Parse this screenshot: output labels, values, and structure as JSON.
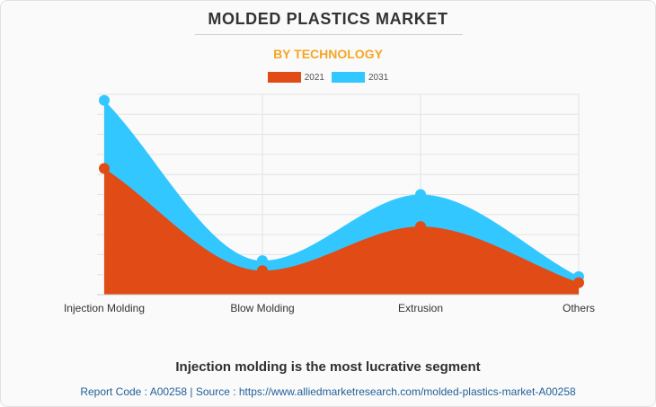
{
  "title": "MOLDED PLASTICS MARKET",
  "subtitle": "BY TECHNOLOGY",
  "caption": "Injection molding is the most lucrative segment",
  "footer": "Report Code : A00258  |  Source : https://www.alliedmarketresearch.com/molded-plastics-market-A00258",
  "colors": {
    "series_2021": "#e04b16",
    "series_2031": "#33c7ff",
    "title": "#333333",
    "subtitle": "#f5a623",
    "footer": "#1f5f99"
  },
  "chart_data": {
    "type": "area",
    "categories": [
      "Injection Molding",
      "Blow Molding",
      "Extrusion",
      "Others"
    ],
    "series": [
      {
        "name": "2021",
        "values": [
          63,
          12,
          34,
          6
        ]
      },
      {
        "name": "2031",
        "values": [
          97,
          17,
          50,
          9
        ]
      }
    ],
    "ylim": [
      0,
      100
    ],
    "grid": true,
    "legend_position": "top-center"
  }
}
